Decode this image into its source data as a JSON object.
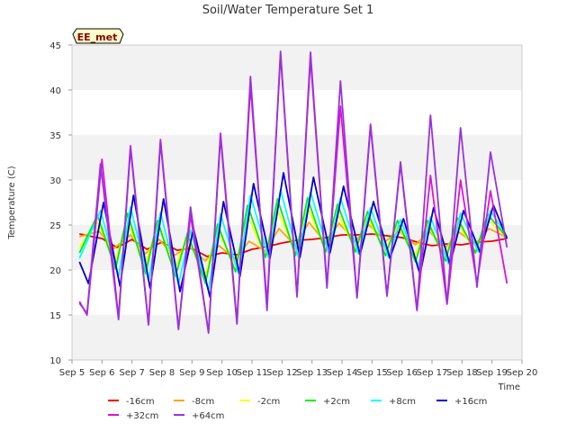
{
  "chart_data": {
    "type": "line",
    "title": "Soil/Water Temperature Set 1",
    "badge": "EE_met",
    "xlabel": "Time",
    "ylabel": "Temperature (C)",
    "ylim": [
      10,
      45
    ],
    "yticks": [
      10,
      15,
      20,
      25,
      30,
      35,
      40,
      45
    ],
    "xlim": [
      5,
      20
    ],
    "xticks": [
      5,
      6,
      7,
      8,
      9,
      10,
      11,
      12,
      13,
      14,
      15,
      16,
      17,
      18,
      19,
      20
    ],
    "xtick_labels": [
      "Sep 5",
      "Sep 6",
      "Sep 7",
      "Sep 8",
      "Sep 9",
      "Sep 10",
      "Sep 11",
      "Sep 12",
      "Sep 13",
      "Sep 14",
      "Sep 15",
      "Sep 16",
      "Sep 17",
      "Sep 18",
      "Sep 19",
      "Sep 20"
    ],
    "grid": "horizontal bands",
    "legend_position": "bottom",
    "x_unit": "day of September (fractional)",
    "series": [
      {
        "name": "-16cm",
        "color": "#ee0000",
        "x": [
          5.25,
          6.0,
          6.5,
          7.0,
          7.5,
          8.0,
          8.5,
          9.0,
          9.5,
          10.0,
          10.5,
          11.0,
          11.5,
          12.0,
          12.5,
          13.0,
          13.5,
          14.0,
          14.5,
          15.0,
          15.5,
          16.0,
          16.5,
          17.0,
          17.5,
          18.0,
          18.5,
          19.0,
          19.5
        ],
        "y": [
          24.0,
          23.5,
          22.5,
          23.4,
          22.3,
          23.1,
          22.2,
          22.4,
          21.5,
          21.9,
          21.7,
          22.3,
          22.6,
          23.0,
          23.3,
          23.4,
          23.6,
          23.9,
          23.9,
          24.0,
          23.8,
          23.6,
          23.1,
          22.7,
          22.9,
          22.8,
          23.1,
          23.2,
          23.5
        ]
      },
      {
        "name": "-8cm",
        "color": "#ffa500",
        "x": [
          5.25,
          5.9,
          6.4,
          6.95,
          7.45,
          7.9,
          8.4,
          8.9,
          9.45,
          9.9,
          10.45,
          10.9,
          11.45,
          11.9,
          12.45,
          12.9,
          13.45,
          13.9,
          14.45,
          14.9,
          15.45,
          15.9,
          16.45,
          16.9,
          17.45,
          17.9,
          18.45,
          18.9,
          19.5
        ],
        "y": [
          23.7,
          24.3,
          22.4,
          23.9,
          21.8,
          23.4,
          21.6,
          22.6,
          21.0,
          22.7,
          21.2,
          23.2,
          22.1,
          24.6,
          22.7,
          25.3,
          23.0,
          25.2,
          23.2,
          25.0,
          23.2,
          24.3,
          22.8,
          24.3,
          22.5,
          24.2,
          22.9,
          24.6,
          23.6
        ]
      },
      {
        "name": "-2cm",
        "color": "#ffff00",
        "x": [
          5.25,
          5.85,
          6.45,
          6.85,
          7.45,
          7.85,
          8.45,
          8.85,
          9.45,
          9.85,
          10.45,
          10.85,
          11.45,
          11.85,
          12.45,
          12.85,
          13.45,
          13.85,
          14.45,
          14.85,
          15.45,
          15.85,
          16.45,
          16.85,
          17.45,
          17.85,
          18.45,
          18.85,
          19.5
        ],
        "y": [
          22.5,
          25.3,
          21.2,
          25.2,
          20.7,
          25.0,
          20.4,
          23.6,
          19.5,
          24.4,
          20.5,
          26.0,
          21.6,
          26.6,
          22.1,
          27.0,
          22.4,
          26.2,
          22.4,
          25.8,
          22.1,
          24.9,
          21.7,
          25.0,
          21.6,
          25.2,
          22.1,
          25.6,
          23.6
        ]
      },
      {
        "name": "+2cm",
        "color": "#00ee00",
        "x": [
          5.25,
          5.85,
          6.45,
          6.85,
          7.45,
          7.85,
          8.45,
          8.85,
          9.45,
          9.85,
          10.45,
          10.85,
          11.45,
          11.85,
          12.45,
          12.85,
          13.45,
          13.85,
          14.45,
          14.85,
          15.45,
          15.85,
          16.45,
          16.85,
          17.45,
          17.85,
          18.45,
          18.85,
          19.5
        ],
        "y": [
          21.9,
          26.1,
          20.1,
          26.3,
          19.6,
          25.5,
          19.3,
          24.1,
          18.5,
          25.1,
          19.8,
          27.2,
          21.4,
          27.9,
          21.6,
          28.0,
          22.0,
          27.3,
          22.0,
          26.5,
          21.6,
          25.5,
          20.9,
          25.5,
          21.0,
          25.8,
          21.9,
          26.2,
          23.6
        ]
      },
      {
        "name": "+8cm",
        "color": "#00ffff",
        "x": [
          5.25,
          5.95,
          6.55,
          6.95,
          7.55,
          7.95,
          8.55,
          8.95,
          9.55,
          9.95,
          10.55,
          10.95,
          11.55,
          11.95,
          12.55,
          12.95,
          13.55,
          13.95,
          14.55,
          14.95,
          15.55,
          15.95,
          16.55,
          16.95,
          17.55,
          17.95,
          18.55,
          18.95,
          19.5
        ],
        "y": [
          21.3,
          26.6,
          19.3,
          27.0,
          18.8,
          26.4,
          18.4,
          24.4,
          17.7,
          26.2,
          19.6,
          28.3,
          21.4,
          28.9,
          21.4,
          28.7,
          21.9,
          28.0,
          21.8,
          26.9,
          21.4,
          25.6,
          20.4,
          25.9,
          20.7,
          26.3,
          22.0,
          26.6,
          23.7
        ]
      },
      {
        "name": "+16cm",
        "color": "#0000cc",
        "x": [
          5.25,
          5.55,
          6.05,
          6.6,
          7.05,
          7.6,
          8.05,
          8.6,
          9.05,
          9.6,
          10.05,
          10.6,
          11.05,
          11.6,
          12.05,
          12.6,
          13.05,
          13.6,
          14.05,
          14.6,
          15.05,
          15.6,
          16.05,
          16.6,
          17.05,
          17.6,
          18.05,
          18.6,
          19.05,
          19.5
        ],
        "y": [
          20.9,
          18.5,
          27.5,
          18.2,
          28.3,
          18.0,
          27.9,
          17.6,
          24.6,
          17.0,
          27.6,
          19.3,
          29.6,
          21.3,
          30.8,
          21.4,
          30.3,
          21.9,
          29.3,
          21.7,
          27.6,
          21.3,
          25.7,
          19.5,
          26.9,
          20.6,
          26.6,
          22.0,
          27.2,
          23.5
        ]
      },
      {
        "name": "+32cm",
        "color": "#dd11dd",
        "x": [
          5.25,
          5.5,
          6.0,
          6.55,
          6.95,
          7.55,
          7.95,
          8.55,
          8.95,
          9.55,
          9.95,
          10.5,
          10.95,
          11.5,
          11.95,
          12.5,
          12.95,
          13.5,
          13.95,
          14.5,
          14.95,
          15.5,
          15.95,
          16.5,
          16.95,
          17.5,
          17.95,
          18.5,
          18.95,
          19.5
        ],
        "y": [
          16.5,
          15.0,
          32.3,
          14.7,
          33.8,
          14.0,
          34.5,
          13.5,
          26.1,
          13.1,
          35.2,
          14.3,
          40.5,
          16.3,
          43.9,
          17.2,
          43.5,
          18.4,
          38.2,
          17.0,
          36.2,
          17.2,
          31.8,
          15.5,
          30.5,
          16.2,
          30.0,
          18.5,
          28.8,
          18.5
        ]
      },
      {
        "name": "+64cm",
        "color": "#9933dd",
        "x": [
          5.25,
          5.5,
          5.95,
          6.55,
          6.95,
          7.55,
          7.95,
          8.55,
          8.95,
          9.55,
          9.95,
          10.5,
          10.95,
          11.5,
          11.95,
          12.5,
          12.95,
          13.5,
          13.95,
          14.5,
          14.95,
          15.5,
          15.95,
          16.5,
          16.95,
          17.5,
          17.95,
          18.5,
          18.95,
          19.5
        ],
        "y": [
          16.3,
          15.2,
          31.8,
          14.5,
          33.5,
          13.9,
          34.2,
          13.4,
          27.0,
          13.0,
          34.8,
          14.0,
          41.5,
          15.5,
          44.3,
          17.0,
          44.2,
          18.0,
          41.0,
          16.9,
          36.0,
          17.1,
          32.0,
          15.6,
          37.2,
          16.3,
          35.8,
          18.1,
          33.1,
          22.5
        ]
      }
    ]
  }
}
